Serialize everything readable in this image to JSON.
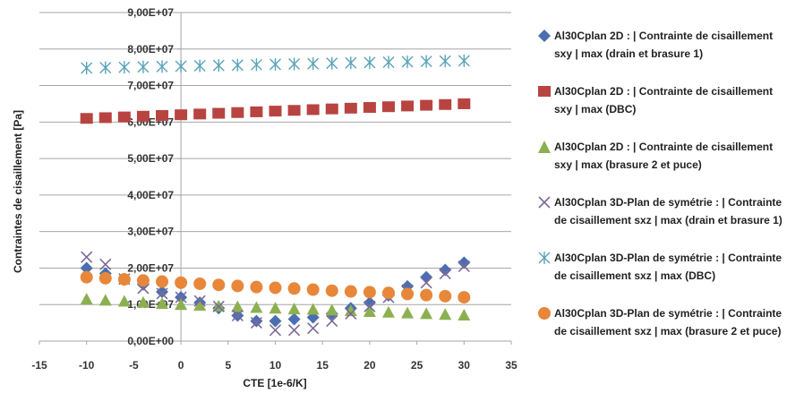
{
  "chart_data": {
    "type": "scatter",
    "xlabel": "CTE [1e-6/K]",
    "ylabel": "Contraintes de cisaillement [Pa]",
    "xlim": [
      -15,
      35
    ],
    "ylim": [
      0,
      90000000
    ],
    "x_ticks": [
      -15,
      -10,
      -5,
      0,
      5,
      10,
      15,
      20,
      25,
      30,
      35
    ],
    "x_tick_labels": [
      "-15",
      "-10",
      "-5",
      "0",
      "5",
      "10",
      "15",
      "20",
      "25",
      "30",
      "35"
    ],
    "y_ticks": [
      0,
      10000000,
      20000000,
      30000000,
      40000000,
      50000000,
      60000000,
      70000000,
      80000000,
      90000000
    ],
    "y_tick_labels": [
      "0,00E+00",
      "1,00E+07",
      "2,00E+07",
      "3,00E+07",
      "4,00E+07",
      "5,00E+07",
      "6,00E+07",
      "7,00E+07",
      "8,00E+07",
      "9,00E+07"
    ],
    "grid": "horizontal",
    "legend_position": "right",
    "series": [
      {
        "name": "Al30Cplan 2D : | Contrainte de cisaillement sxy | max (drain et brasure 1)",
        "marker": "diamond",
        "color": "#4a6eb0",
        "x": [
          -10,
          -8,
          -6,
          -4,
          -2,
          0,
          2,
          4,
          6,
          8,
          10,
          12,
          14,
          16,
          18,
          20,
          22,
          24,
          26,
          28,
          30
        ],
        "y": [
          20000000,
          18500000,
          17000000,
          15500000,
          13500000,
          12000000,
          10500000,
          9000000,
          7000000,
          5500000,
          5500000,
          6000000,
          6500000,
          7500000,
          9000000,
          10500000,
          12500000,
          15000000,
          17500000,
          19500000,
          21500000
        ]
      },
      {
        "name": "Al30Cplan 2D : | Contrainte de cisaillement sxy | max (DBC)",
        "marker": "square",
        "color": "#b84441",
        "x": [
          -10,
          -8,
          -6,
          -4,
          -2,
          0,
          2,
          4,
          6,
          8,
          10,
          12,
          14,
          16,
          18,
          20,
          22,
          24,
          26,
          28,
          30
        ],
        "y": [
          61000000,
          61200000,
          61400000,
          61600000,
          61800000,
          62000000,
          62200000,
          62400000,
          62600000,
          62800000,
          63000000,
          63200000,
          63400000,
          63600000,
          63800000,
          64000000,
          64200000,
          64400000,
          64600000,
          64800000,
          65000000
        ]
      },
      {
        "name": "Al30Cplan 2D : | Contrainte de cisaillement sxy | max (brasure 2 et puce)",
        "marker": "triangle",
        "color": "#8cb050",
        "x": [
          -10,
          -8,
          -6,
          -4,
          -2,
          0,
          2,
          4,
          6,
          8,
          10,
          12,
          14,
          16,
          18,
          20,
          22,
          24,
          26,
          28,
          30
        ],
        "y": [
          11500000,
          11200000,
          10900000,
          10600000,
          10300000,
          10000000,
          9800000,
          9600000,
          9400000,
          9200000,
          9000000,
          8800000,
          8700000,
          8500000,
          8300000,
          8100000,
          7900000,
          7700000,
          7500000,
          7300000,
          7100000
        ]
      },
      {
        "name": "Al30Cplan 3D-Plan de symétrie : | Contrainte de cisaillement sxz | max (drain et brasure 1)",
        "marker": "x",
        "color": "#7b6a9a",
        "x": [
          -10,
          -8,
          -6,
          -4,
          -2,
          0,
          2,
          4,
          6,
          8,
          10,
          12,
          14,
          16,
          18,
          20,
          22,
          24,
          26,
          28,
          30
        ],
        "y": [
          23000000,
          21000000,
          17000000,
          14500000,
          13000000,
          12000000,
          11000000,
          9500000,
          7000000,
          5000000,
          3000000,
          3000000,
          3500000,
          5500000,
          7500000,
          9500000,
          12000000,
          14000000,
          16000000,
          18500000,
          20500000
        ]
      },
      {
        "name": "Al30Cplan 3D-Plan de symétrie : | Contrainte de cisaillement sxz | max (DBC)",
        "marker": "asterisk",
        "color": "#5aa3b8",
        "x": [
          -10,
          -8,
          -6,
          -4,
          -2,
          0,
          2,
          4,
          6,
          8,
          10,
          12,
          14,
          16,
          18,
          20,
          22,
          24,
          26,
          28,
          30
        ],
        "y": [
          74800000,
          74900000,
          75000000,
          75100000,
          75200000,
          75300000,
          75400000,
          75500000,
          75600000,
          75700000,
          75800000,
          75900000,
          76000000,
          76100000,
          76200000,
          76300000,
          76400000,
          76500000,
          76600000,
          76700000,
          76800000
        ]
      },
      {
        "name": "Al30Cplan 3D-Plan de symétrie : | Contrainte de cisaillement sxz | max (brasure 2 et puce)",
        "marker": "circle",
        "color": "#e8873a",
        "x": [
          -10,
          -8,
          -6,
          -4,
          -2,
          0,
          2,
          4,
          6,
          8,
          10,
          12,
          14,
          16,
          18,
          20,
          22,
          24,
          26,
          28,
          30
        ],
        "y": [
          17500000,
          17200000,
          16900000,
          16600000,
          16300000,
          16000000,
          15700000,
          15400000,
          15100000,
          14800000,
          14600000,
          14400000,
          14100000,
          13800000,
          13600000,
          13400000,
          13200000,
          12900000,
          12600000,
          12300000,
          12000000
        ]
      }
    ]
  },
  "legend": {
    "items": [
      {
        "line1": "Al30Cplan 2D : | Contrainte de cisaillement",
        "line2": "sxy | max (drain et brasure 1)"
      },
      {
        "line1": "Al30Cplan 2D : | Contrainte de cisaillement",
        "line2": "sxy | max (DBC)"
      },
      {
        "line1": "Al30Cplan 2D : | Contrainte de cisaillement",
        "line2": "sxy | max (brasure 2 et puce)"
      },
      {
        "line1": "Al30Cplan 3D-Plan de symétrie : | Contrainte",
        "line2": "de cisaillement sxz | max (drain et brasure 1)"
      },
      {
        "line1": "Al30Cplan 3D-Plan de symétrie : | Contrainte",
        "line2": "de cisaillement sxz | max (DBC)"
      },
      {
        "line1": "Al30Cplan 3D-Plan de symétrie : | Contrainte",
        "line2": "de cisaillement sxz | max (brasure 2 et puce)"
      }
    ]
  }
}
